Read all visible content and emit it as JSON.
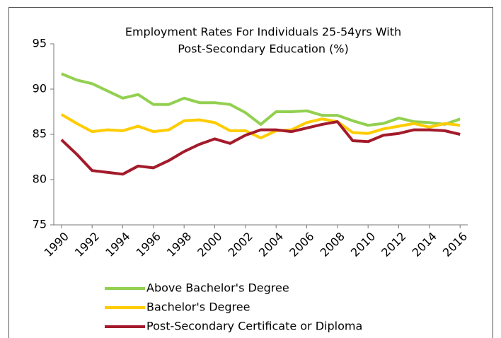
{
  "chart_data": {
    "type": "line",
    "title": [
      "Employment Rates For Individuals 25-54yrs With",
      "Post-Secondary Education (%)"
    ],
    "x": [
      1990,
      1991,
      1992,
      1993,
      1994,
      1995,
      1996,
      1997,
      1998,
      1999,
      2000,
      2001,
      2002,
      2003,
      2004,
      2005,
      2006,
      2007,
      2008,
      2009,
      2010,
      2011,
      2012,
      2013,
      2014,
      2015,
      2016
    ],
    "xlim": [
      1989.5,
      2016.5
    ],
    "xticks": [
      1990,
      1992,
      1994,
      1996,
      1998,
      2000,
      2002,
      2004,
      2006,
      2008,
      2010,
      2012,
      2014,
      2016
    ],
    "ylim": [
      75,
      95
    ],
    "yticks": [
      75,
      80,
      85,
      90,
      95
    ],
    "grid": false,
    "legend": "bottom",
    "series": [
      {
        "name": "Above Bachelor's Degree",
        "color": "#92d050",
        "values": [
          91.7,
          91.0,
          90.6,
          89.8,
          89.0,
          89.4,
          88.3,
          88.3,
          89.0,
          88.5,
          88.5,
          88.3,
          87.4,
          86.1,
          87.5,
          87.5,
          87.6,
          87.1,
          87.1,
          86.5,
          86.0,
          86.2,
          86.8,
          86.4,
          86.3,
          86.1,
          86.7
        ]
      },
      {
        "name": "Bachelor's Degree",
        "color": "#ffcc00",
        "values": [
          87.2,
          86.2,
          85.3,
          85.5,
          85.4,
          85.9,
          85.3,
          85.5,
          86.5,
          86.6,
          86.3,
          85.4,
          85.4,
          84.6,
          85.4,
          85.5,
          86.3,
          86.7,
          86.4,
          85.2,
          85.1,
          85.6,
          85.9,
          86.2,
          85.8,
          86.2,
          86.0
        ]
      },
      {
        "name": "Post-Secondary Certificate or Diploma",
        "color": "#a31b2b",
        "values": [
          84.4,
          82.8,
          81.0,
          80.8,
          80.6,
          81.5,
          81.3,
          82.1,
          83.1,
          83.9,
          84.5,
          84.0,
          84.9,
          85.5,
          85.5,
          85.3,
          85.7,
          86.1,
          86.4,
          84.3,
          84.2,
          84.9,
          85.1,
          85.5,
          85.5,
          85.4,
          85.0
        ]
      }
    ]
  }
}
